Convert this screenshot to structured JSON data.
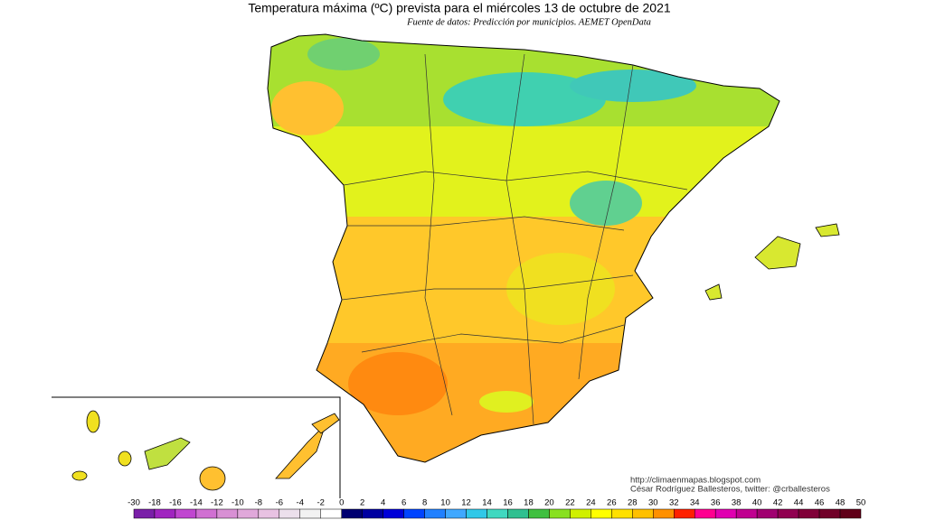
{
  "header": {
    "title": "Temperatura máxima (ºC) prevista para el miércoles 13 de octubre de 2021",
    "subtitle": "Fuente de datos: Predicción por municipios. AEMET OpenData"
  },
  "credits": {
    "url": "http://climaenmapas.blogspot.com",
    "author": "César Rodríguez Ballesteros, twitter: @crballesteros"
  },
  "legend": {
    "ticks": [
      -30,
      -18,
      -16,
      -14,
      -12,
      -10,
      -8,
      -6,
      -4,
      -2,
      0,
      2,
      4,
      6,
      8,
      10,
      12,
      14,
      16,
      18,
      20,
      22,
      24,
      26,
      28,
      30,
      32,
      34,
      36,
      38,
      40,
      42,
      44,
      46,
      48,
      50
    ],
    "colors": [
      "#7a1fa8",
      "#a024c0",
      "#c046d0",
      "#d070d2",
      "#d890d4",
      "#e0a8da",
      "#e8c2e2",
      "#ece0ec",
      "#f2f2f2",
      "#ffffff",
      "#000070",
      "#0000a0",
      "#0000d8",
      "#0044ff",
      "#2080ff",
      "#40a8ff",
      "#30c8e8",
      "#40d8c0",
      "#30c090",
      "#40c040",
      "#88e020",
      "#d0f000",
      "#ffff00",
      "#ffe000",
      "#ffc000",
      "#ff9000",
      "#ff2000",
      "#ff0090",
      "#e000b0",
      "#c00090",
      "#a00070",
      "#900050",
      "#800038",
      "#700028",
      "#600018"
    ]
  }
}
